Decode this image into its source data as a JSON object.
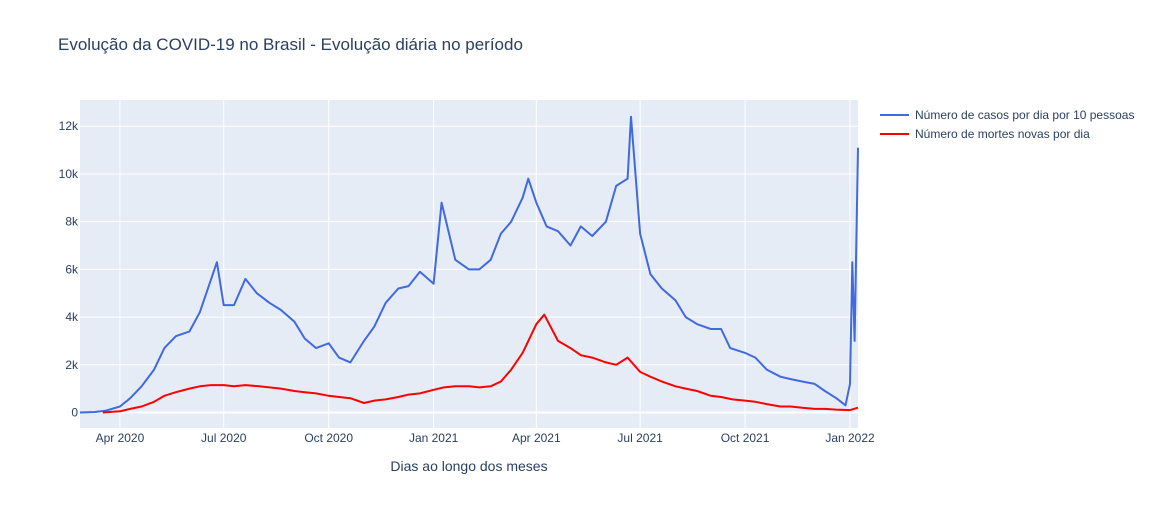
{
  "chart_data": {
    "type": "line",
    "title": "Evolução da COVID-19 no Brasil - Evolução diária no período",
    "xlabel": "Dias ao longo dos meses",
    "ylabel": "",
    "x_range": [
      "2020-02-26",
      "2022-01-08"
    ],
    "ylim": [
      -650,
      13100
    ],
    "x_ticks": [
      {
        "date": "2020-04-01",
        "label": "Apr 2020"
      },
      {
        "date": "2020-07-01",
        "label": "Jul 2020"
      },
      {
        "date": "2020-10-01",
        "label": "Oct 2020"
      },
      {
        "date": "2021-01-01",
        "label": "Jan 2021"
      },
      {
        "date": "2021-04-01",
        "label": "Apr 2021"
      },
      {
        "date": "2021-07-01",
        "label": "Jul 2021"
      },
      {
        "date": "2021-10-01",
        "label": "Oct 2021"
      },
      {
        "date": "2022-01-01",
        "label": "Jan 2022"
      }
    ],
    "y_ticks": [
      {
        "value": 0,
        "label": "0"
      },
      {
        "value": 2000,
        "label": "2k"
      },
      {
        "value": 4000,
        "label": "4k"
      },
      {
        "value": 6000,
        "label": "6k"
      },
      {
        "value": 8000,
        "label": "8k"
      },
      {
        "value": 10000,
        "label": "10k"
      },
      {
        "value": 12000,
        "label": "12k"
      }
    ],
    "grid": true,
    "legend_position": "top-right, outside plot",
    "background_color": "#e5ecf6",
    "series": [
      {
        "name": "Número de casos por dia por 10 pessoas",
        "color": "#4169e1",
        "x": [
          "2020-02-26",
          "2020-03-10",
          "2020-03-20",
          "2020-04-01",
          "2020-04-10",
          "2020-04-20",
          "2020-05-01",
          "2020-05-10",
          "2020-05-20",
          "2020-06-01",
          "2020-06-10",
          "2020-06-20",
          "2020-06-25",
          "2020-07-01",
          "2020-07-10",
          "2020-07-20",
          "2020-07-30",
          "2020-08-10",
          "2020-08-20",
          "2020-09-01",
          "2020-09-10",
          "2020-09-20",
          "2020-10-01",
          "2020-10-10",
          "2020-10-20",
          "2020-11-01",
          "2020-11-10",
          "2020-11-20",
          "2020-12-01",
          "2020-12-10",
          "2020-12-20",
          "2021-01-01",
          "2021-01-08",
          "2021-01-20",
          "2021-02-01",
          "2021-02-10",
          "2021-02-20",
          "2021-03-01",
          "2021-03-10",
          "2021-03-20",
          "2021-03-25",
          "2021-04-01",
          "2021-04-10",
          "2021-04-20",
          "2021-05-01",
          "2021-05-10",
          "2021-05-20",
          "2021-06-01",
          "2021-06-10",
          "2021-06-20",
          "2021-06-23",
          "2021-07-01",
          "2021-07-10",
          "2021-07-20",
          "2021-08-01",
          "2021-08-10",
          "2021-08-20",
          "2021-09-01",
          "2021-09-10",
          "2021-09-18",
          "2021-10-01",
          "2021-10-10",
          "2021-10-20",
          "2021-11-01",
          "2021-11-10",
          "2021-11-20",
          "2021-12-01",
          "2021-12-10",
          "2021-12-20",
          "2021-12-28",
          "2022-01-01",
          "2022-01-03",
          "2022-01-05",
          "2022-01-08"
        ],
        "values": [
          0,
          20,
          80,
          250,
          600,
          1100,
          1800,
          2700,
          3200,
          3400,
          4200,
          5600,
          6300,
          4500,
          4500,
          5600,
          5000,
          4600,
          4300,
          3800,
          3100,
          2700,
          2900,
          2300,
          2100,
          3000,
          3600,
          4600,
          5200,
          5300,
          5900,
          5400,
          8800,
          6400,
          6000,
          6000,
          6400,
          7500,
          8000,
          9000,
          9800,
          8800,
          7800,
          7600,
          7000,
          7800,
          7400,
          8000,
          9500,
          9800,
          12400,
          7500,
          5800,
          5200,
          4700,
          4000,
          3700,
          3500,
          3500,
          2700,
          2500,
          2300,
          1800,
          1500,
          1400,
          1300,
          1200,
          900,
          600,
          300,
          1200,
          6300,
          3000,
          11100
        ]
      },
      {
        "name": "Número de mortes novas por dia",
        "color": "#ff0000",
        "x": [
          "2020-03-17",
          "2020-04-01",
          "2020-04-10",
          "2020-04-20",
          "2020-05-01",
          "2020-05-10",
          "2020-05-20",
          "2020-06-01",
          "2020-06-10",
          "2020-06-20",
          "2020-07-01",
          "2020-07-10",
          "2020-07-20",
          "2020-08-01",
          "2020-08-10",
          "2020-08-20",
          "2020-09-01",
          "2020-09-10",
          "2020-09-20",
          "2020-10-01",
          "2020-10-10",
          "2020-10-20",
          "2020-11-01",
          "2020-11-10",
          "2020-11-20",
          "2020-12-01",
          "2020-12-10",
          "2020-12-20",
          "2021-01-01",
          "2021-01-10",
          "2021-01-20",
          "2021-02-01",
          "2021-02-10",
          "2021-02-20",
          "2021-03-01",
          "2021-03-10",
          "2021-03-20",
          "2021-03-27",
          "2021-04-01",
          "2021-04-08",
          "2021-04-20",
          "2021-05-01",
          "2021-05-10",
          "2021-05-20",
          "2021-06-01",
          "2021-06-10",
          "2021-06-20",
          "2021-07-01",
          "2021-07-10",
          "2021-07-20",
          "2021-08-01",
          "2021-08-10",
          "2021-08-20",
          "2021-09-01",
          "2021-09-10",
          "2021-09-20",
          "2021-10-01",
          "2021-10-10",
          "2021-10-20",
          "2021-11-01",
          "2021-11-10",
          "2021-11-20",
          "2021-12-01",
          "2021-12-10",
          "2021-12-20",
          "2022-01-01",
          "2022-01-08"
        ],
        "values": [
          0,
          50,
          150,
          250,
          450,
          700,
          850,
          1000,
          1100,
          1150,
          1150,
          1100,
          1150,
          1100,
          1050,
          1000,
          900,
          850,
          800,
          700,
          650,
          600,
          400,
          500,
          550,
          650,
          750,
          800,
          950,
          1050,
          1100,
          1100,
          1050,
          1100,
          1300,
          1800,
          2500,
          3200,
          3700,
          4100,
          3000,
          2700,
          2400,
          2300,
          2100,
          2000,
          2300,
          1700,
          1500,
          1300,
          1100,
          1000,
          900,
          700,
          650,
          550,
          500,
          450,
          350,
          250,
          250,
          200,
          150,
          150,
          120,
          100,
          200
        ]
      }
    ]
  }
}
